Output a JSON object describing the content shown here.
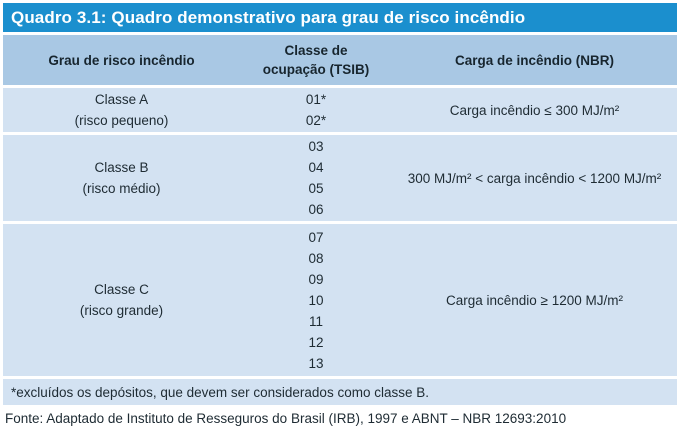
{
  "page": {
    "title": "Quadro 3.1: Quadro demonstrativo para grau de risco incêndio",
    "footnote": "*excluídos os depósitos, que devem ser considerados como classe B.",
    "source": "Fonte: Adaptado de Instituto de Resseguros do Brasil (IRB), 1997 e ABNT – NBR 12693:2010"
  },
  "table": {
    "columns": [
      {
        "label": "Grau de risco incêndio"
      },
      {
        "label": "Classe de ocupação (TSIB)",
        "lines": [
          "Classe de",
          "ocupação (TSIB)"
        ]
      },
      {
        "label": "Carga de incêndio (NBR)"
      }
    ],
    "rows": [
      {
        "grade": "Classe A",
        "risk": "(risco pequeno)",
        "codes": [
          "01*",
          "02*"
        ],
        "load": "Carga incêndio ≤ 300 MJ/m²"
      },
      {
        "grade": "Classe B",
        "risk": "(risco médio)",
        "codes": [
          "03",
          "04",
          "05",
          "06"
        ],
        "load": "300 MJ/m² < carga incêndio < 1200 MJ/m²"
      },
      {
        "grade": "Classe C",
        "risk": "(risco grande)",
        "codes": [
          "07",
          "08",
          "09",
          "10",
          "11",
          "12",
          "13"
        ],
        "load": "Carga incêndio ≥ 1200 MJ/m²"
      }
    ]
  },
  "colors": {
    "title_bar_bg": "#1b8fce",
    "title_text": "#ffffff",
    "header_row_bg": "#a9c8e4",
    "data_row_bg": "#d3e2f2",
    "body_text": "#1e2b33",
    "page_bg": "#ffffff"
  }
}
